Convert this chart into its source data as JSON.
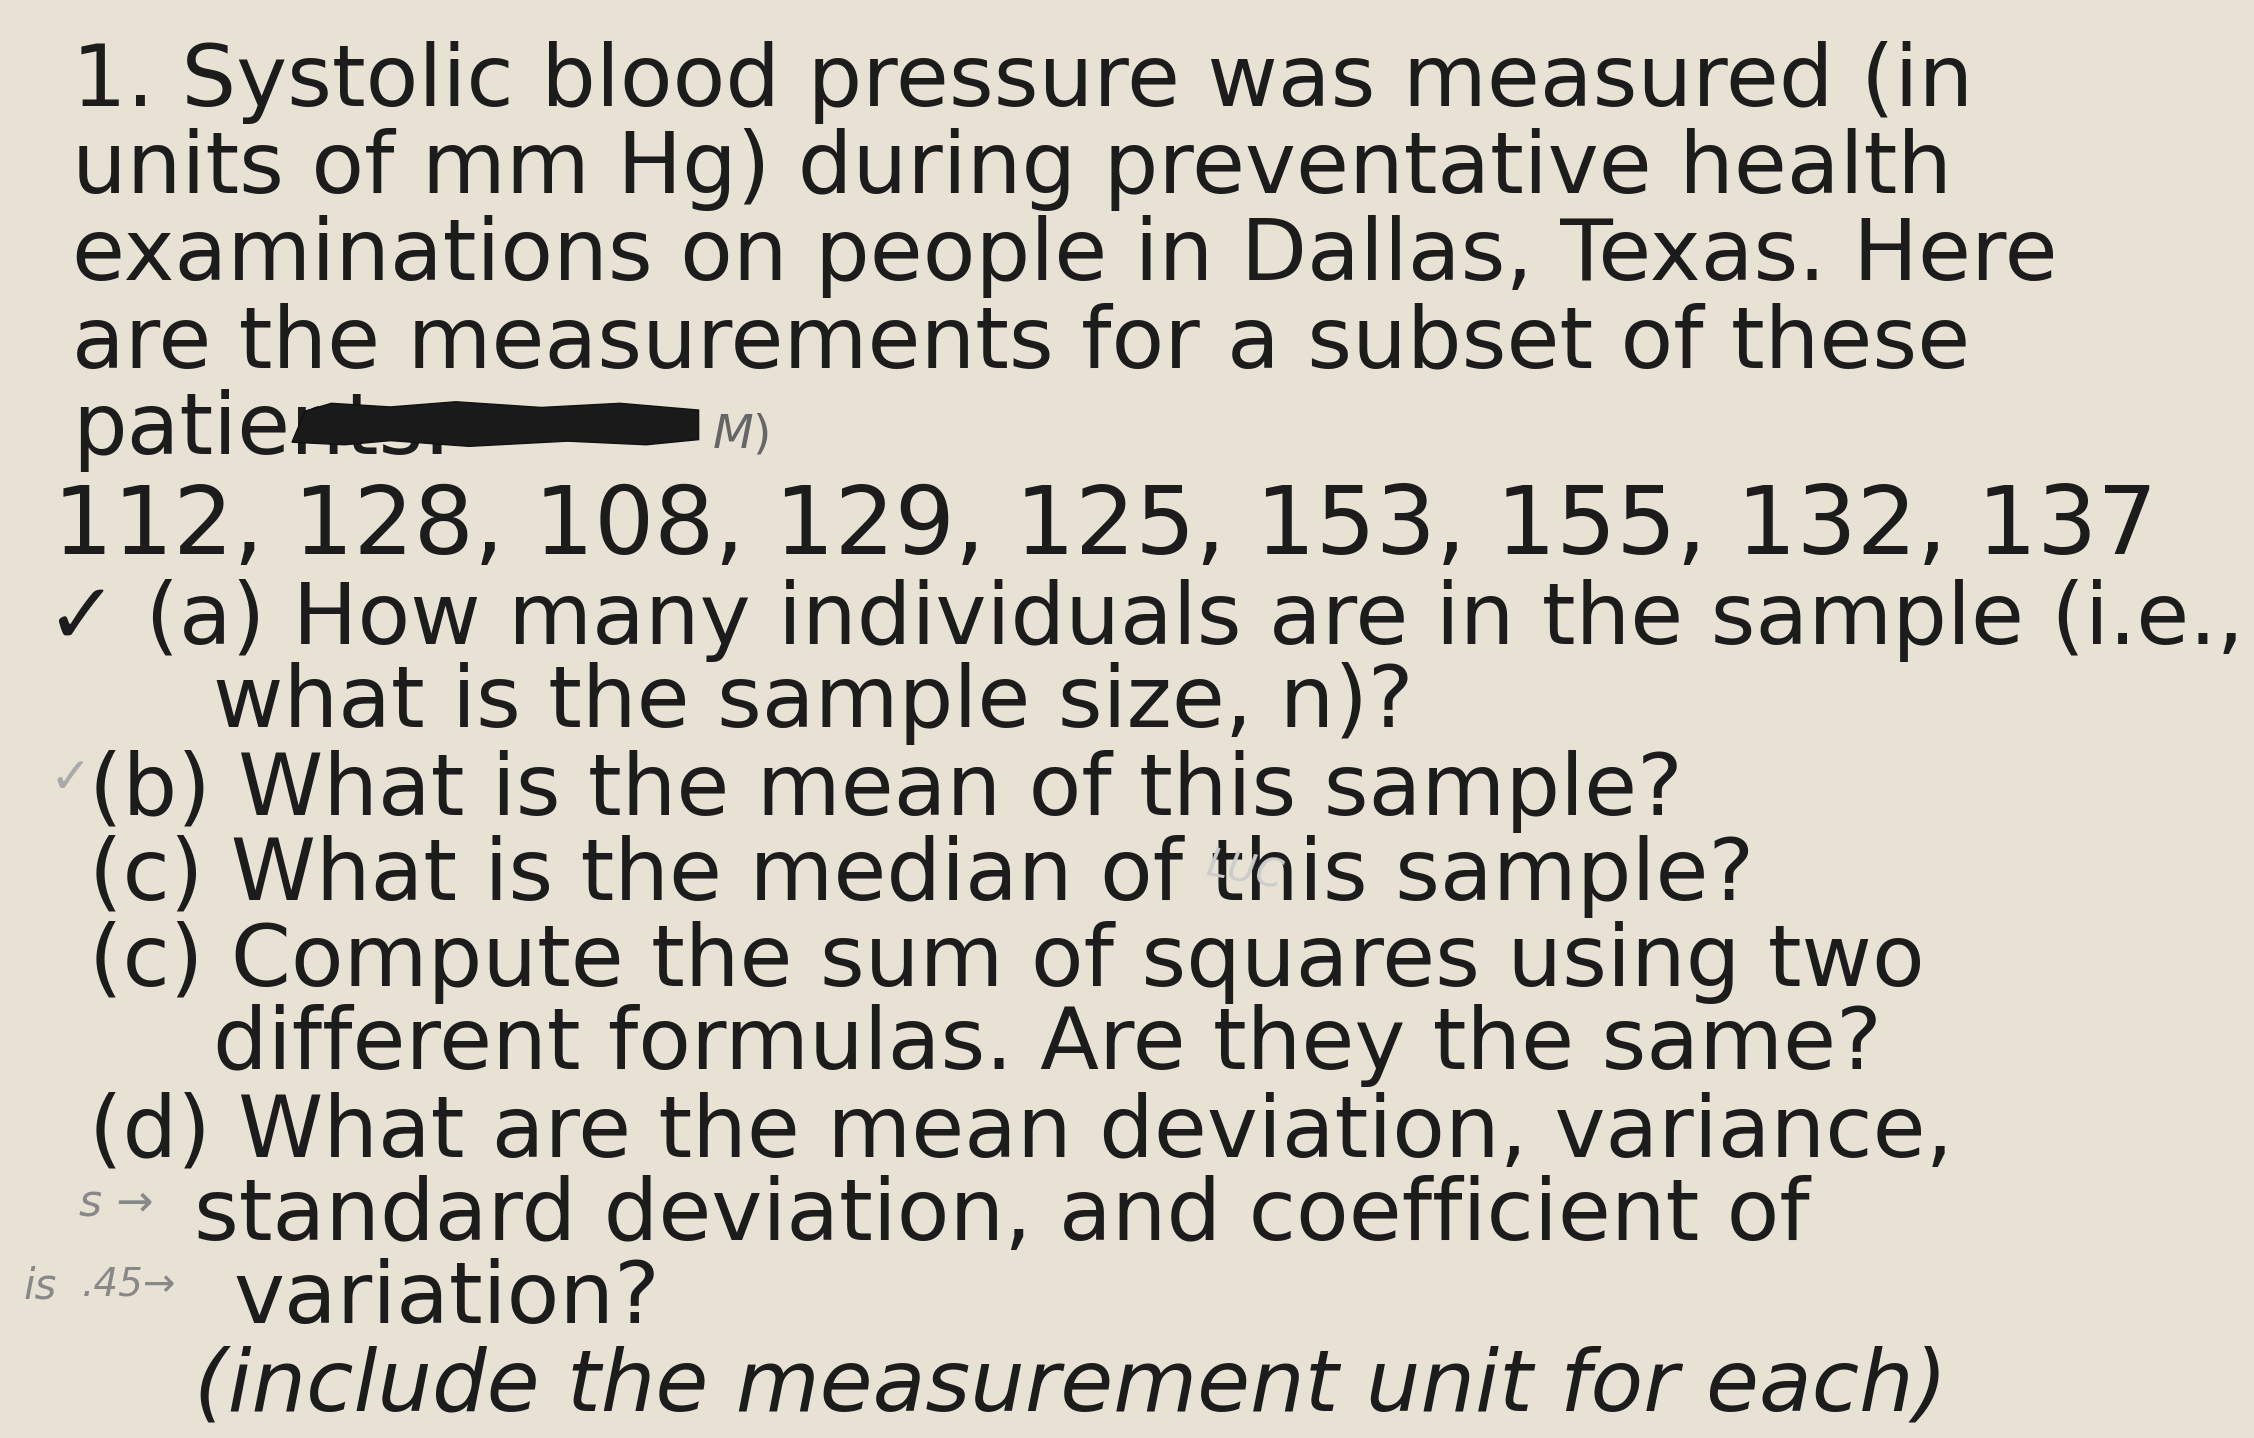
{
  "background_color": "#e8e2d5",
  "text_color": "#1c1c1c",
  "title_lines": [
    "1. Systolic blood pressure was measured (in",
    "units of mm Hg) during preventative health",
    "examinations on people in Dallas, Texas. Here",
    "are the measurements for a subset of these",
    "patients."
  ],
  "data_line": "112, 128, 108, 129, 125, 153, 155, 132, 137",
  "q_a_line1": "✓ (a) How many individuals are in the sample (i.e.,",
  "q_a_line2": "what is the sample size, n)?",
  "q_b": "(b) What is the mean of this sample?",
  "q_c1": "(c) What is the median of this sample?",
  "q_c2_line1": "(c) Compute the sum of squares using two",
  "q_c2_line2": "different formulas. Are they the same?",
  "q_d_line1": "(d) What are the mean deviation, variance,",
  "q_d_line2": "standard deviation, and coefficient of",
  "q_d_line3": "variation?",
  "q_d_italic": "(include the measurement unit for each)",
  "annot_is": "is",
  "annot_45": ".45→",
  "font_size": 62,
  "font_size_data": 68
}
